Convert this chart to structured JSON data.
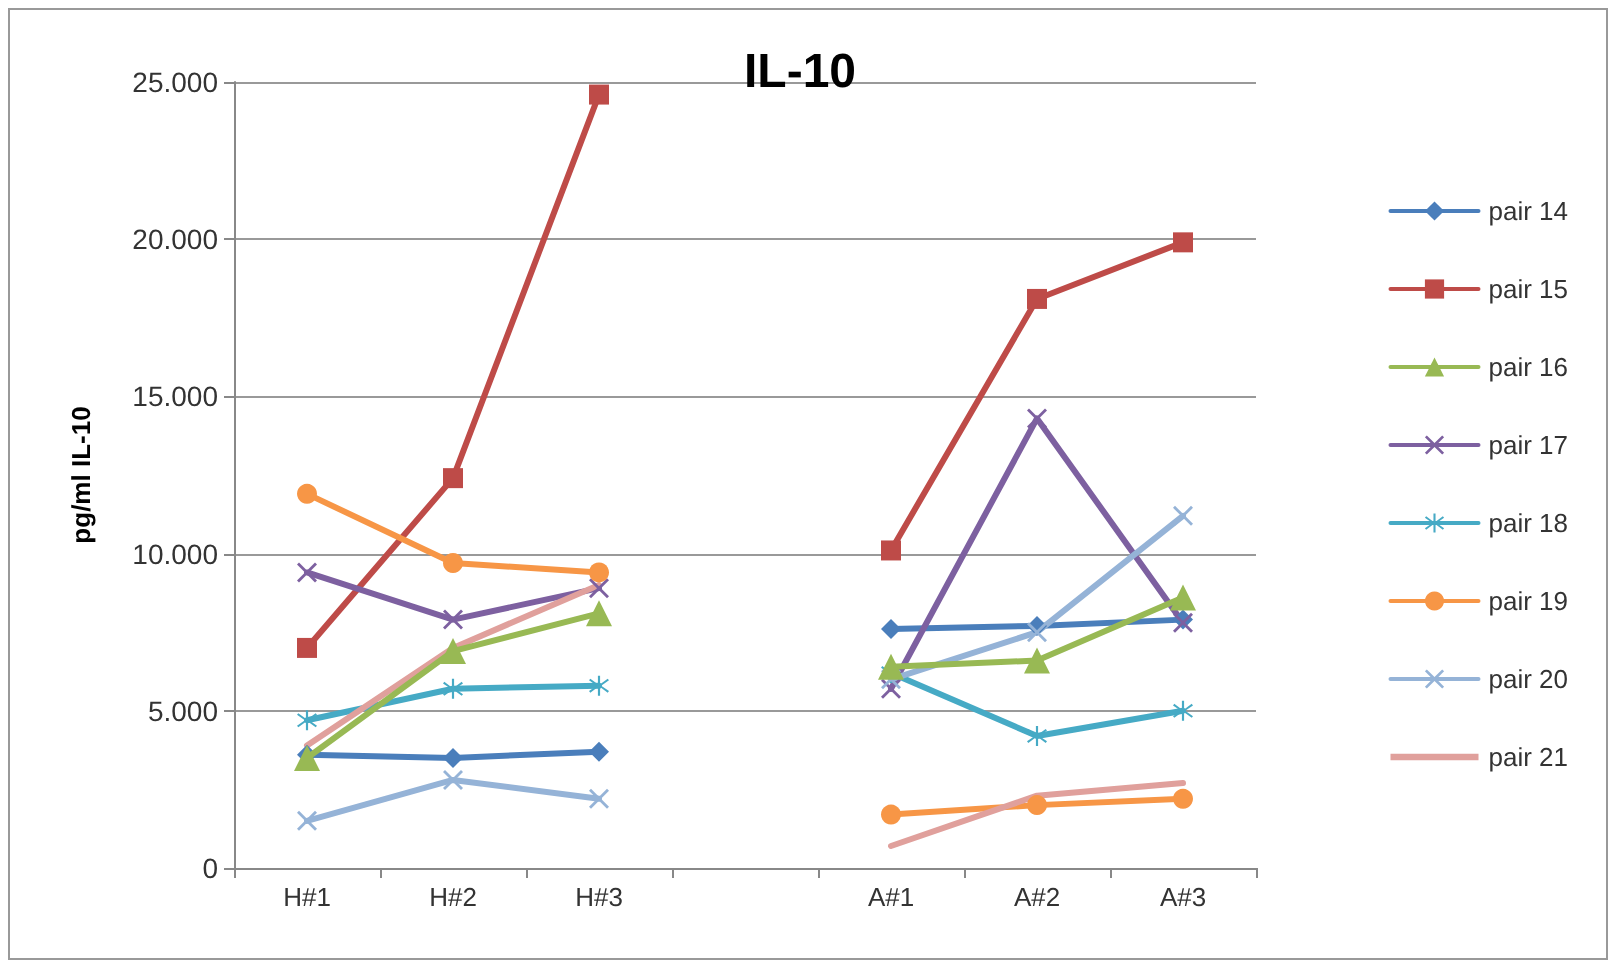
{
  "chart_data": {
    "type": "line",
    "title": "IL-10",
    "ylabel": "pg/ml IL-10",
    "categories": [
      "H#1",
      "H#2",
      "H#3",
      null,
      "A#1",
      "A#2",
      "A#3"
    ],
    "ylim": [
      0,
      25000
    ],
    "yticks": [
      0,
      {
        "value": 5000,
        "label": "5.000"
      },
      {
        "value": 10000,
        "label": "10.000"
      },
      {
        "value": 15000,
        "label": "15.000"
      },
      {
        "value": 20000,
        "label": "20.000"
      },
      {
        "value": 25000,
        "label": "25.000"
      }
    ],
    "grid": "y",
    "legend": "right",
    "series": [
      {
        "name": "pair 14",
        "color": "#4a7ebb",
        "marker": "diamond",
        "values": [
          3600,
          3500,
          3700,
          null,
          7600,
          7700,
          7900
        ]
      },
      {
        "name": "pair 15",
        "color": "#be4b48",
        "marker": "square",
        "values": [
          7000,
          12400,
          24600,
          null,
          10100,
          18100,
          19900
        ]
      },
      {
        "name": "pair 16",
        "color": "#98b954",
        "marker": "triangle",
        "values": [
          3500,
          6900,
          8100,
          null,
          6400,
          6600,
          8600
        ]
      },
      {
        "name": "pair 17",
        "color": "#7d60a0",
        "marker": "cross",
        "values": [
          9400,
          7900,
          8900,
          null,
          5700,
          14300,
          7800
        ]
      },
      {
        "name": "pair 18",
        "color": "#46aac5",
        "marker": "star",
        "values": [
          4700,
          5700,
          5800,
          null,
          6200,
          4200,
          5000
        ]
      },
      {
        "name": "pair 19",
        "color": "#f79646",
        "marker": "circle",
        "values": [
          11900,
          9700,
          9400,
          null,
          1700,
          2000,
          2200
        ]
      },
      {
        "name": "pair 20",
        "color": "#95b3d7",
        "marker": "cross",
        "values": [
          1500,
          2800,
          2200,
          null,
          6000,
          7500,
          11200
        ]
      },
      {
        "name": "pair 21",
        "color": "#e0a09c",
        "marker": "none",
        "values": [
          3900,
          7000,
          9000,
          null,
          700,
          2300,
          2700
        ]
      }
    ]
  }
}
